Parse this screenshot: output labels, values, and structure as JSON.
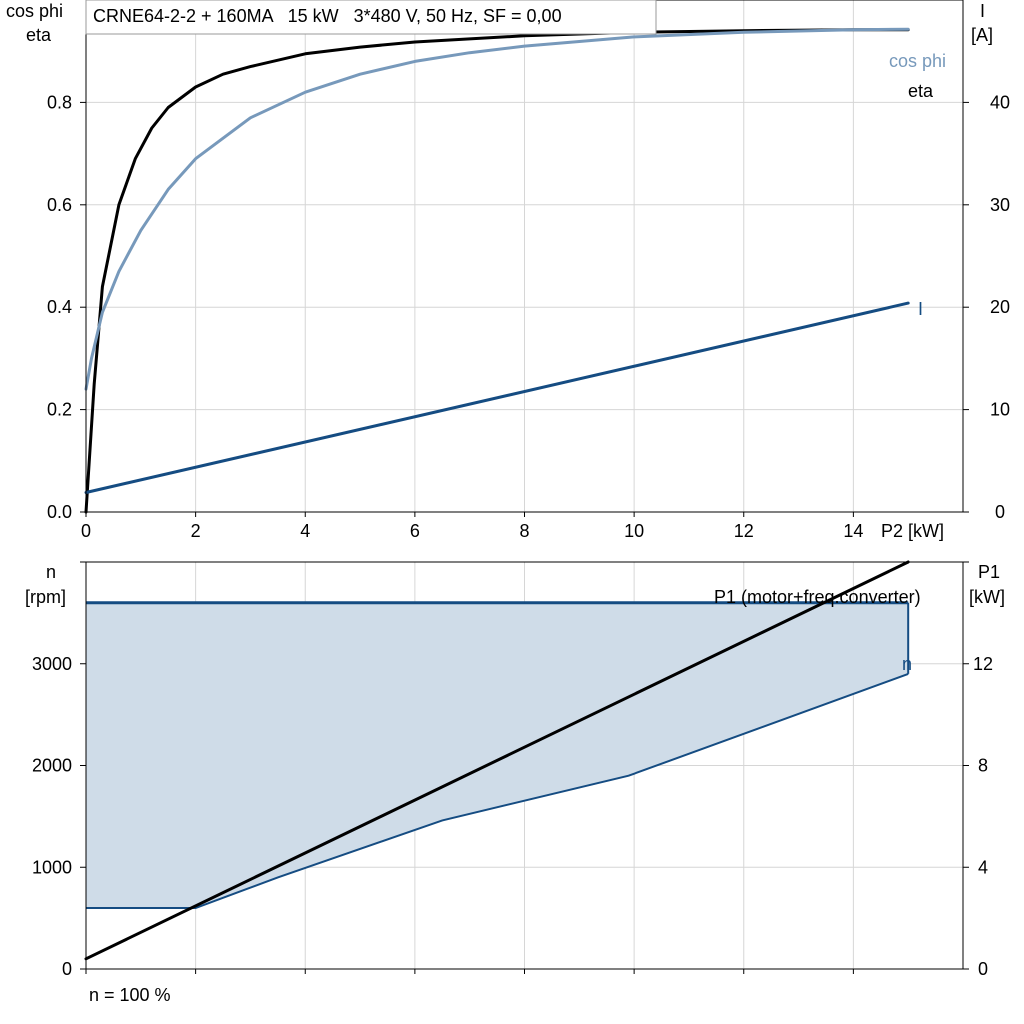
{
  "colors": {
    "eta": "#000000",
    "cos_phi": "#7799bb",
    "current": "#154c82",
    "speed": "#154c82",
    "speed_fill": "#cfdce8",
    "power": "#000000",
    "grid": "#d6d6d6"
  },
  "chart_data": [
    {
      "id": "motor-curves",
      "type": "line",
      "title": "CRNE64-2-2 + 160MA   15 kW   3*480 V, 50 Hz, SF = 0,00",
      "xlabel": "P2 [kW]",
      "ylabel_left": "cos phi eta",
      "ylabel_left_line1": "cos phi",
      "ylabel_left_line2": "eta",
      "ylabel_right": "I [A]",
      "ylabel_right_line1": "I",
      "ylabel_right_line2": "[A]",
      "xlim": [
        0,
        16
      ],
      "ylim_left": [
        0,
        1.0
      ],
      "ylim_right": [
        0,
        50
      ],
      "x_ticks": [
        "0",
        "2",
        "4",
        "6",
        "8",
        "10",
        "12",
        "14"
      ],
      "y_left_ticks": [
        "0.0",
        "0.2",
        "0.4",
        "0.6",
        "0.8"
      ],
      "y_right_ticks": [
        "0",
        "10",
        "20",
        "30",
        "40"
      ],
      "grid": true,
      "series": [
        {
          "name": "eta",
          "axis": "left",
          "x": [
            0,
            0.15,
            0.3,
            0.6,
            0.9,
            1.2,
            1.5,
            2.0,
            2.5,
            3.0,
            4.0,
            5.0,
            6.0,
            8.0,
            10.0,
            12.0,
            14.0,
            15.0
          ],
          "y": [
            0,
            0.25,
            0.44,
            0.6,
            0.69,
            0.75,
            0.79,
            0.83,
            0.855,
            0.87,
            0.895,
            0.908,
            0.918,
            0.93,
            0.937,
            0.94,
            0.942,
            0.942
          ]
        },
        {
          "name": "cos phi",
          "axis": "left",
          "x": [
            0,
            0.1,
            0.3,
            0.6,
            1.0,
            1.5,
            2.0,
            3.0,
            4.0,
            5.0,
            6.0,
            7.0,
            8.0,
            10.0,
            12.0,
            14.0,
            15.0
          ],
          "y": [
            0.24,
            0.3,
            0.39,
            0.47,
            0.55,
            0.63,
            0.69,
            0.77,
            0.82,
            0.855,
            0.88,
            0.897,
            0.91,
            0.928,
            0.937,
            0.942,
            0.943
          ]
        },
        {
          "name": "I",
          "axis": "right",
          "x": [
            0,
            15.0
          ],
          "y": [
            1.9,
            20.4
          ]
        }
      ]
    },
    {
      "id": "speed-power",
      "type": "area",
      "xlabel": "",
      "ylabel_left": "n [rpm]",
      "ylabel_left_line1": "n",
      "ylabel_left_line2": "[rpm]",
      "ylabel_right": "P1 [kW]",
      "ylabel_right_line1": "P1",
      "ylabel_right_line2": "[kW]",
      "xlim": [
        0,
        16
      ],
      "ylim_left": [
        0,
        4000
      ],
      "ylim_right": [
        0,
        16
      ],
      "y_left_ticks": [
        "0",
        "1000",
        "2000",
        "3000"
      ],
      "y_right_ticks": [
        "0",
        "4",
        "8",
        "12"
      ],
      "grid": true,
      "footnote": "n = 100 %",
      "series": [
        {
          "name": "n",
          "axis": "left",
          "kind": "range",
          "x_upper": [
            0,
            15.0
          ],
          "y_upper": [
            3600,
            3600
          ],
          "x_lower": [
            0,
            2.0,
            3.5,
            6.5,
            9.9,
            15.0
          ],
          "y_lower": [
            600,
            600,
            900,
            1460,
            1900,
            2900
          ]
        },
        {
          "name": "P1 (motor+freq.converter)",
          "axis": "right",
          "x": [
            0,
            15.0
          ],
          "y": [
            0.4,
            16.0
          ]
        }
      ]
    }
  ]
}
